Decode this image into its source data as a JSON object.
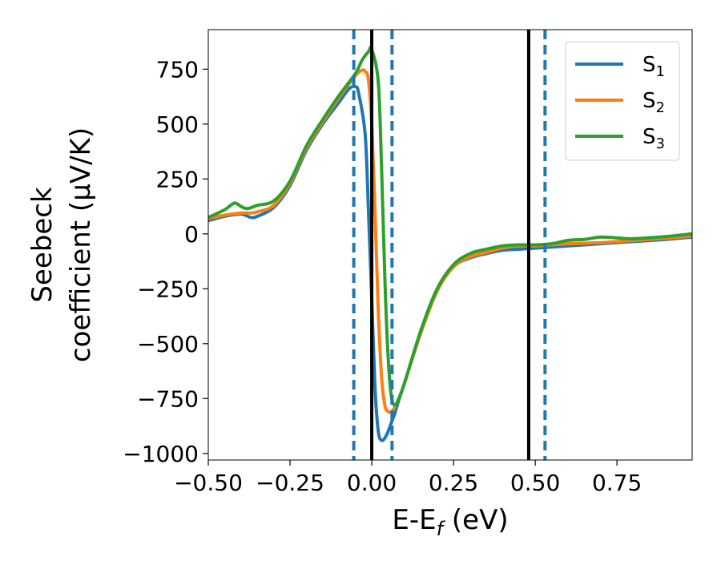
{
  "chart_data": {
    "type": "line",
    "title": "",
    "xlabel": "E-E",
    "xlabel_sub": "f",
    "xlabel_unit": " (eV)",
    "ylabel_line1": "Seebeck",
    "ylabel_line2": "coefficient  (μV/K)",
    "xlim": [
      -0.5,
      0.98
    ],
    "ylim": [
      -1030,
      930
    ],
    "grid": false,
    "legend_position": "top-right",
    "x_ticks": [
      -0.5,
      -0.25,
      0.0,
      0.25,
      0.5,
      0.75
    ],
    "x_tick_labels": [
      "−0.50",
      "−0.25",
      "0.00",
      "0.25",
      "0.50",
      "0.75"
    ],
    "y_ticks": [
      750,
      500,
      250,
      0,
      -250,
      -500,
      -750,
      -1000
    ],
    "y_tick_labels": [
      "750",
      "500",
      "250",
      "0",
      "−250",
      "−500",
      "−750",
      "−1000"
    ],
    "vlines_solid": [
      0.0,
      0.48
    ],
    "vlines_dashed": [
      -0.055,
      0.062,
      0.53
    ],
    "series": [
      {
        "name": "S",
        "name_sub": "1",
        "color": "#1f77b4",
        "x": [
          -0.5,
          -0.45,
          -0.4,
          -0.37,
          -0.35,
          -0.3,
          -0.25,
          -0.2,
          -0.15,
          -0.1,
          -0.07,
          -0.05,
          -0.04,
          -0.02,
          -0.01,
          0.0,
          0.01,
          0.02,
          0.03,
          0.04,
          0.05,
          0.06,
          0.07,
          0.08,
          0.1,
          0.15,
          0.2,
          0.25,
          0.3,
          0.35,
          0.4,
          0.45,
          0.5,
          0.55,
          0.6,
          0.7,
          0.8,
          0.9,
          0.98
        ],
        "y": [
          60,
          80,
          90,
          75,
          80,
          120,
          220,
          380,
          500,
          600,
          660,
          670,
          640,
          450,
          100,
          -300,
          -700,
          -900,
          -940,
          -930,
          -900,
          -860,
          -820,
          -770,
          -680,
          -450,
          -260,
          -150,
          -110,
          -90,
          -75,
          -70,
          -65,
          -60,
          -55,
          -45,
          -35,
          -25,
          -15
        ]
      },
      {
        "name": "S",
        "name_sub": "2",
        "color": "#ff7f0e",
        "x": [
          -0.5,
          -0.45,
          -0.4,
          -0.37,
          -0.35,
          -0.3,
          -0.25,
          -0.2,
          -0.15,
          -0.1,
          -0.05,
          -0.03,
          -0.02,
          -0.01,
          0.0,
          0.01,
          0.02,
          0.03,
          0.04,
          0.05,
          0.06,
          0.07,
          0.08,
          0.1,
          0.15,
          0.2,
          0.25,
          0.3,
          0.35,
          0.4,
          0.45,
          0.5,
          0.55,
          0.6,
          0.7,
          0.8,
          0.9,
          0.98
        ],
        "y": [
          70,
          85,
          95,
          95,
          100,
          130,
          230,
          390,
          510,
          620,
          720,
          745,
          740,
          700,
          500,
          100,
          -350,
          -650,
          -780,
          -810,
          -810,
          -790,
          -760,
          -680,
          -450,
          -260,
          -150,
          -105,
          -85,
          -65,
          -55,
          -55,
          -50,
          -45,
          -40,
          -30,
          -20,
          -10
        ]
      },
      {
        "name": "S",
        "name_sub": "3",
        "color": "#2ca02c",
        "x": [
          -0.5,
          -0.45,
          -0.42,
          -0.4,
          -0.38,
          -0.35,
          -0.3,
          -0.25,
          -0.2,
          -0.15,
          -0.1,
          -0.05,
          -0.03,
          -0.01,
          0.0,
          0.02,
          0.03,
          0.04,
          0.05,
          0.06,
          0.07,
          0.08,
          0.1,
          0.15,
          0.2,
          0.25,
          0.3,
          0.35,
          0.4,
          0.45,
          0.5,
          0.55,
          0.6,
          0.65,
          0.7,
          0.75,
          0.8,
          0.9,
          0.98
        ],
        "y": [
          75,
          110,
          140,
          125,
          115,
          130,
          150,
          240,
          400,
          520,
          630,
          730,
          790,
          830,
          840,
          690,
          300,
          -200,
          -560,
          -740,
          -780,
          -760,
          -680,
          -440,
          -250,
          -140,
          -90,
          -70,
          -55,
          -50,
          -50,
          -45,
          -30,
          -25,
          -15,
          -18,
          -22,
          -12,
          0
        ]
      }
    ]
  }
}
